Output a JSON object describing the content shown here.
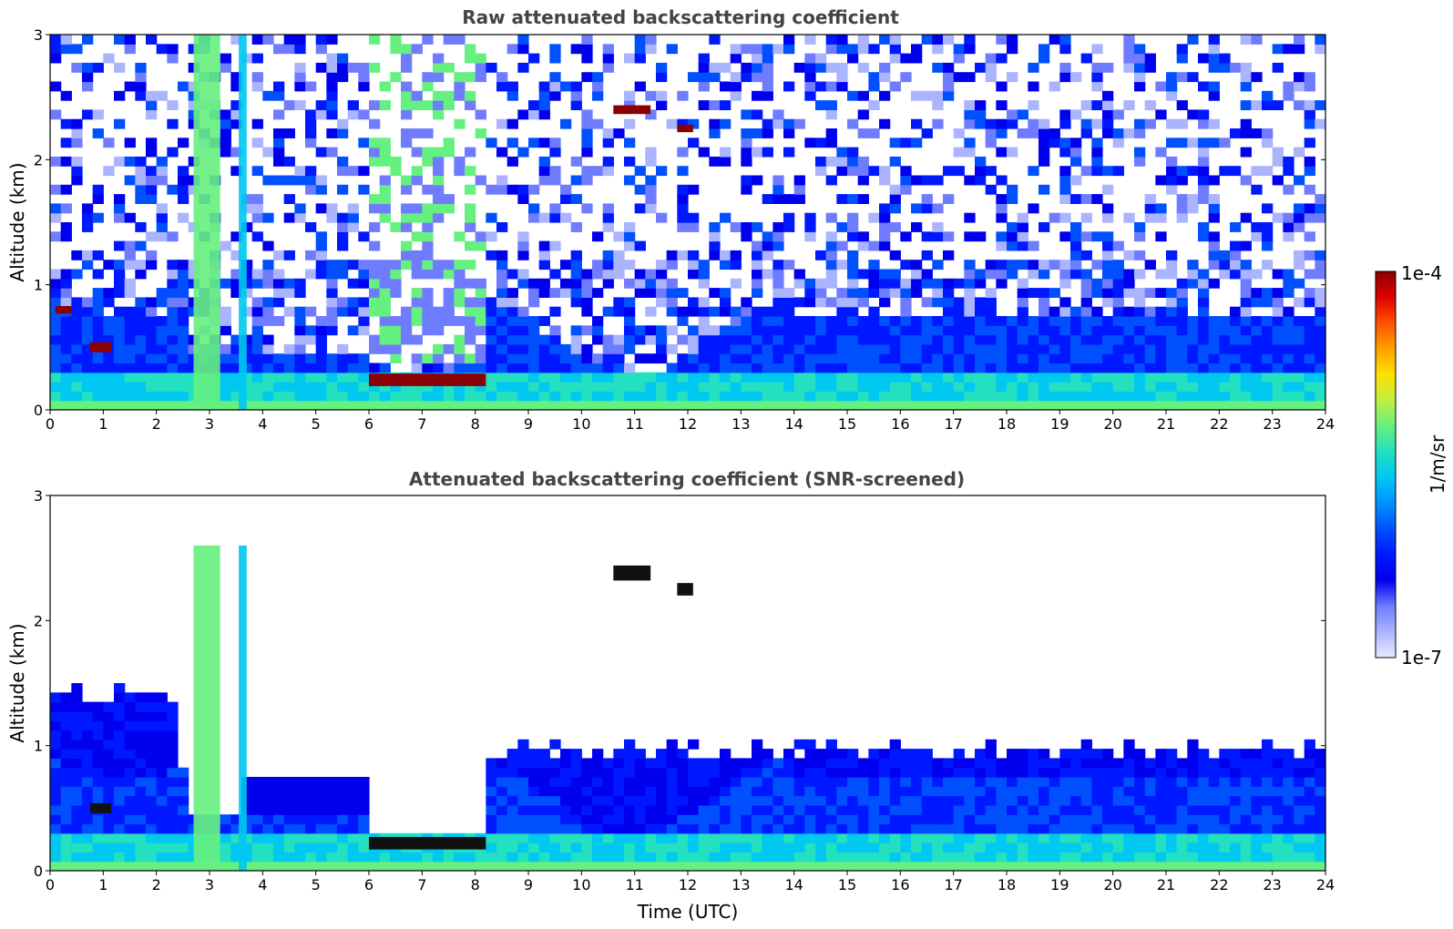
{
  "colors": {
    "colormap": [
      "#e8ecff",
      "#aab4ff",
      "#6f7cff",
      "#0000ee",
      "#0018ff",
      "#0050ff",
      "#0090ff",
      "#00c8f0",
      "#22e0c0",
      "#66f080",
      "#bff040",
      "#ffe000",
      "#ffa000",
      "#ff5000",
      "#e00000",
      "#8b0000"
    ],
    "cloud_dark": "#111111",
    "axis": "#000000"
  },
  "chart_data": [
    {
      "type": "heatmap",
      "title": "Raw attenuated backscattering coefficient",
      "xlabel": "",
      "ylabel": "Altitude (km)",
      "xlim": [
        0,
        24
      ],
      "ylim": [
        0,
        3
      ],
      "x_ticks": [
        "0",
        "1",
        "2",
        "3",
        "4",
        "5",
        "6",
        "7",
        "8",
        "9",
        "10",
        "11",
        "12",
        "13",
        "14",
        "15",
        "16",
        "17",
        "18",
        "19",
        "20",
        "21",
        "22",
        "23",
        "24"
      ],
      "y_ticks": [
        "0",
        "1",
        "2",
        "3"
      ],
      "features": [
        {
          "kind": "cloud_layer",
          "x": [
            0.1,
            0.4
          ],
          "y_km": 0.8,
          "thickness_km": 0.06,
          "level": "1e-4"
        },
        {
          "kind": "cloud_layer",
          "x": [
            0.75,
            1.15
          ],
          "y_km": 0.5,
          "thickness_km": 0.08,
          "level": "1e-4"
        },
        {
          "kind": "cloud_layer",
          "x": [
            6.0,
            8.2
          ],
          "y_km": 0.24,
          "thickness_km": 0.1,
          "level": "1e-4"
        },
        {
          "kind": "cloud_layer",
          "x": [
            10.6,
            11.3
          ],
          "y_km": 2.4,
          "thickness_km": 0.07,
          "level": "1e-4"
        },
        {
          "kind": "cloud_layer",
          "x": [
            11.8,
            12.1
          ],
          "y_km": 2.25,
          "thickness_km": 0.06,
          "level": "1e-4"
        },
        {
          "kind": "precip_column",
          "x": [
            2.7,
            3.2
          ],
          "level": "high"
        },
        {
          "kind": "precip_column",
          "x": [
            3.55,
            3.7
          ],
          "level": "medium"
        }
      ]
    },
    {
      "type": "heatmap",
      "title": "Attenuated backscattering coefficient (SNR-screened)",
      "xlabel": "Time (UTC)",
      "ylabel": "Altitude (km)",
      "xlim": [
        0,
        24
      ],
      "ylim": [
        0,
        3
      ],
      "x_ticks": [
        "0",
        "1",
        "2",
        "3",
        "4",
        "5",
        "6",
        "7",
        "8",
        "9",
        "10",
        "11",
        "12",
        "13",
        "14",
        "15",
        "16",
        "17",
        "18",
        "19",
        "20",
        "21",
        "22",
        "23",
        "24"
      ],
      "y_ticks": [
        "0",
        "1",
        "2",
        "3"
      ],
      "features": [
        {
          "kind": "cloud_layer",
          "x": [
            0.75,
            1.15
          ],
          "y_km": 0.5,
          "thickness_km": 0.08,
          "level": "saturated"
        },
        {
          "kind": "cloud_layer",
          "x": [
            6.0,
            8.2
          ],
          "y_km": 0.22,
          "thickness_km": 0.1,
          "level": "saturated"
        },
        {
          "kind": "cloud_layer",
          "x": [
            10.6,
            11.3
          ],
          "y_km": 2.38,
          "thickness_km": 0.12,
          "level": "saturated"
        },
        {
          "kind": "cloud_layer",
          "x": [
            11.8,
            12.1
          ],
          "y_km": 2.25,
          "thickness_km": 0.1,
          "level": "saturated"
        },
        {
          "kind": "precip_column",
          "x": [
            2.7,
            3.2
          ],
          "level": "high"
        },
        {
          "kind": "precip_column",
          "x": [
            3.55,
            3.7
          ],
          "level": "medium"
        }
      ]
    }
  ],
  "colorbar": {
    "max_label": "1e-4",
    "min_label": "1e-7",
    "unit_label": "1/m/sr",
    "scale": "log"
  }
}
